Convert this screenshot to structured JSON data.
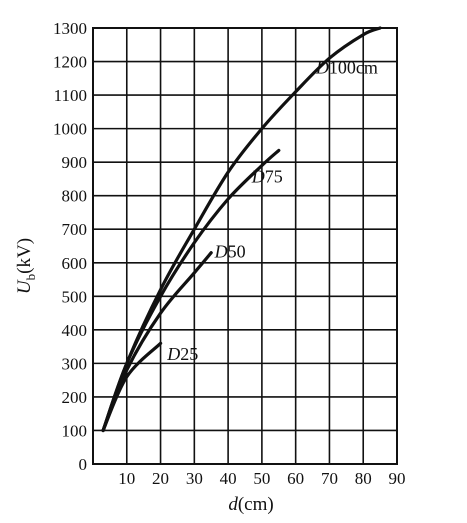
{
  "chart_data": {
    "type": "line",
    "title": "",
    "xlabel": {
      "var": "d",
      "unit": "(cm)"
    },
    "ylabel": {
      "var": "U",
      "sub": "b",
      "unit": "(kV)"
    },
    "xlim": [
      0,
      90
    ],
    "ylim": [
      0,
      1300
    ],
    "xticks": [
      "10",
      "20",
      "30",
      "40",
      "50",
      "60",
      "70",
      "80",
      "90"
    ],
    "yticks": [
      "0",
      "100",
      "200",
      "300",
      "400",
      "500",
      "600",
      "700",
      "800",
      "900",
      "1000",
      "1100",
      "1200",
      "1300"
    ],
    "grid": true,
    "series": [
      {
        "name": "D100cm",
        "label_var": "D",
        "label_rest": "100cm",
        "x": [
          3,
          10,
          20,
          30,
          40,
          50,
          60,
          70,
          80,
          85
        ],
        "y": [
          100,
          300,
          520,
          700,
          870,
          1000,
          1110,
          1210,
          1280,
          1300
        ]
      },
      {
        "name": "D75",
        "label_var": "D",
        "label_rest": "75",
        "x": [
          3,
          10,
          20,
          30,
          40,
          50,
          55
        ],
        "y": [
          100,
          300,
          500,
          660,
          790,
          890,
          935
        ]
      },
      {
        "name": "D50",
        "label_var": "D",
        "label_rest": "50",
        "x": [
          3,
          10,
          20,
          30,
          35
        ],
        "y": [
          100,
          280,
          450,
          570,
          630
        ]
      },
      {
        "name": "D25",
        "label_var": "D",
        "label_rest": "25",
        "x": [
          3,
          10,
          20
        ],
        "y": [
          100,
          260,
          360
        ]
      }
    ]
  }
}
